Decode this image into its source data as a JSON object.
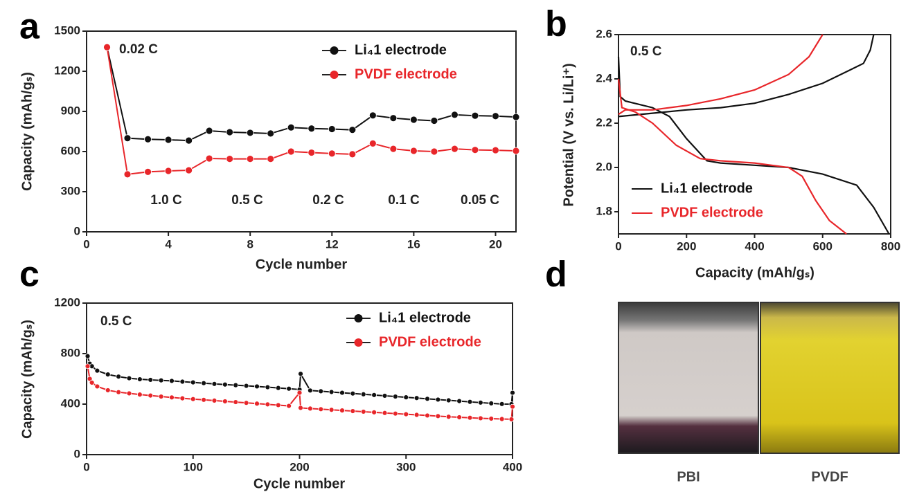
{
  "chart_data": [
    {
      "type": "line",
      "panel": "a",
      "xlabel": "Cycle number",
      "ylabel": "Capacity (mAh/gₛ)",
      "x": [
        1,
        2,
        3,
        4,
        5,
        6,
        7,
        8,
        9,
        10,
        11,
        12,
        13,
        14,
        15,
        16,
        17,
        18,
        19,
        20,
        21
      ],
      "xlim": [
        0,
        21
      ],
      "xticks": [
        0,
        4,
        8,
        12,
        16,
        20
      ],
      "ylim": [
        0,
        1500
      ],
      "yticks": [
        0,
        300,
        600,
        900,
        1200,
        1500
      ],
      "markers": true,
      "series": [
        {
          "name": "Li₄1 electrode",
          "color": "#111111",
          "values": [
            1380,
            700,
            692,
            688,
            682,
            755,
            745,
            740,
            735,
            780,
            772,
            768,
            762,
            870,
            850,
            838,
            830,
            875,
            868,
            865,
            858
          ]
        },
        {
          "name": "PVDF electrode",
          "color": "#e8262a",
          "values": [
            1380,
            430,
            448,
            455,
            460,
            548,
            545,
            545,
            545,
            600,
            592,
            585,
            580,
            660,
            620,
            605,
            600,
            620,
            612,
            610,
            605
          ]
        }
      ],
      "annotations": [
        "0.02 C",
        "1.0 C",
        "0.5 C",
        "0.2 C",
        "0.1 C",
        "0.05 C"
      ]
    },
    {
      "type": "line",
      "panel": "b",
      "xlabel": "Capacity (mAh/gₛ)",
      "ylabel": "Potential (V vs. Li/Li⁺)",
      "xlim": [
        0,
        800
      ],
      "xticks": [
        0,
        200,
        400,
        600,
        800
      ],
      "ylim": [
        1.7,
        2.6
      ],
      "yticks": [
        1.8,
        {
          "value": 2,
          "label": "2.0"
        },
        2.2,
        2.4,
        2.6
      ],
      "markers": false,
      "series": [
        {
          "name": "Li₄1 electrode",
          "color": "#111111",
          "x": [
            0,
            100,
            200,
            300,
            400,
            500,
            600,
            680,
            720,
            740,
            750
          ],
          "values": [
            2.23,
            2.245,
            2.26,
            2.27,
            2.29,
            2.33,
            2.38,
            2.44,
            2.47,
            2.53,
            2.6
          ]
        },
        {
          "color": "#111111",
          "x": [
            0,
            5,
            20,
            100,
            150,
            200,
            260,
            300,
            400,
            500,
            600,
            700,
            750,
            795
          ],
          "values": [
            2.5,
            2.32,
            2.3,
            2.27,
            2.23,
            2.13,
            2.03,
            2.02,
            2.01,
            2.0,
            1.97,
            1.92,
            1.82,
            1.7
          ]
        },
        {
          "name": "PVDF electrode",
          "color": "#e8262a",
          "x": [
            0,
            20,
            100,
            200,
            300,
            400,
            500,
            560,
            600
          ],
          "values": [
            2.24,
            2.26,
            2.26,
            2.28,
            2.31,
            2.35,
            2.42,
            2.5,
            2.6
          ]
        },
        {
          "color": "#e8262a",
          "x": [
            0,
            10,
            50,
            100,
            170,
            240,
            300,
            400,
            450,
            500,
            540,
            580,
            620,
            670
          ],
          "values": [
            2.4,
            2.27,
            2.25,
            2.2,
            2.1,
            2.04,
            2.03,
            2.02,
            2.01,
            2.0,
            1.96,
            1.85,
            1.76,
            1.7
          ]
        }
      ],
      "annotations": [
        "0.5 C"
      ]
    },
    {
      "type": "line",
      "panel": "c",
      "xlabel": "Cycle number",
      "ylabel": "Capacity (mAh/gₛ)",
      "x": [
        1,
        3,
        5,
        10,
        20,
        30,
        40,
        50,
        60,
        70,
        80,
        90,
        100,
        110,
        120,
        130,
        140,
        150,
        160,
        170,
        180,
        190,
        200,
        201,
        210,
        220,
        230,
        240,
        250,
        260,
        270,
        280,
        290,
        300,
        310,
        320,
        330,
        340,
        350,
        360,
        370,
        380,
        390,
        399,
        400
      ],
      "xlim": [
        0,
        400
      ],
      "xticks": [
        0,
        100,
        200,
        300,
        400
      ],
      "ylim": [
        0,
        1200
      ],
      "yticks": [
        0,
        400,
        800,
        1200
      ],
      "markers": true,
      "series": [
        {
          "name": "Li₄1 electrode",
          "color": "#111111",
          "values": [
            780,
            720,
            700,
            665,
            635,
            618,
            605,
            597,
            592,
            588,
            584,
            578,
            572,
            566,
            560,
            555,
            550,
            545,
            540,
            534,
            528,
            522,
            516,
            640,
            508,
            502,
            496,
            490,
            484,
            478,
            472,
            466,
            460,
            454,
            448,
            442,
            436,
            430,
            424,
            418,
            412,
            406,
            401,
            400,
            490
          ]
        },
        {
          "name": "PVDF electrode",
          "color": "#e8262a",
          "values": [
            700,
            600,
            570,
            540,
            510,
            495,
            485,
            476,
            468,
            460,
            453,
            446,
            440,
            434,
            428,
            422,
            416,
            410,
            404,
            398,
            392,
            386,
            490,
            370,
            365,
            360,
            355,
            350,
            345,
            340,
            335,
            330,
            325,
            320,
            315,
            310,
            305,
            300,
            296,
            292,
            288,
            285,
            282,
            280,
            380
          ]
        }
      ],
      "annotations": [
        "0.5 C"
      ]
    },
    {
      "type": "photo",
      "panel": "d",
      "labels": [
        "PBI",
        "PVDF"
      ]
    }
  ]
}
